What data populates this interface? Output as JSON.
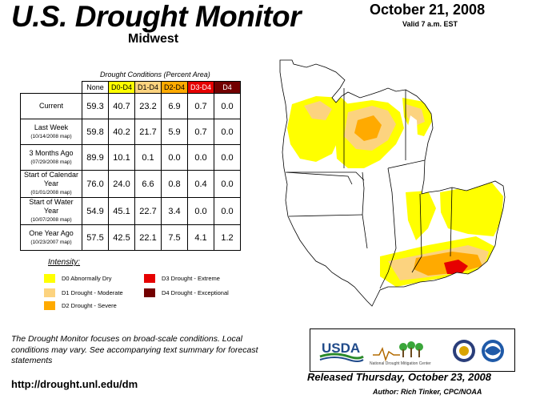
{
  "header": {
    "title": "U.S. Drought Monitor",
    "region": "Midwest",
    "date": "October 21, 2008",
    "valid": "Valid 7 a.m. EST"
  },
  "table": {
    "caption": "Drought Conditions (Percent Area)",
    "columns": [
      "None",
      "D0-D4",
      "D1-D4",
      "D2-D4",
      "D3-D4",
      "D4"
    ],
    "column_colors": [
      "#ffffff",
      "#ffff00",
      "#fcd37f",
      "#ffaa00",
      "#e60000",
      "#730000"
    ],
    "column_text_colors": [
      "#000000",
      "#000000",
      "#000000",
      "#000000",
      "#ffffff",
      "#ffffff"
    ],
    "rows": [
      {
        "label": "Current",
        "sub": "",
        "values": [
          "59.3",
          "40.7",
          "23.2",
          "6.9",
          "0.7",
          "0.0"
        ]
      },
      {
        "label": "Last Week",
        "sub": "(10/14/2008 map)",
        "values": [
          "59.8",
          "40.2",
          "21.7",
          "5.9",
          "0.7",
          "0.0"
        ]
      },
      {
        "label": "3 Months Ago",
        "sub": "(07/29/2008 map)",
        "values": [
          "89.9",
          "10.1",
          "0.1",
          "0.0",
          "0.0",
          "0.0"
        ]
      },
      {
        "label": "Start of Calendar Year",
        "sub": "(01/01/2008 map)",
        "values": [
          "76.0",
          "24.0",
          "6.6",
          "0.8",
          "0.4",
          "0.0"
        ]
      },
      {
        "label": "Start of Water Year",
        "sub": "(10/07/2008 map)",
        "values": [
          "54.9",
          "45.1",
          "22.7",
          "3.4",
          "0.0",
          "0.0"
        ]
      },
      {
        "label": "One Year Ago",
        "sub": "(10/23/2007 map)",
        "values": [
          "57.5",
          "42.5",
          "22.1",
          "7.5",
          "4.1",
          "1.2"
        ]
      }
    ]
  },
  "legend": {
    "title": "Intensity:",
    "items": [
      {
        "label": "D0 Abnormally Dry",
        "color": "#ffff00"
      },
      {
        "label": "D1 Drought - Moderate",
        "color": "#fcd37f"
      },
      {
        "label": "D2 Drought - Severe",
        "color": "#ffaa00"
      },
      {
        "label": "D3 Drought - Extreme",
        "color": "#e60000"
      },
      {
        "label": "D4 Drought - Exceptional",
        "color": "#730000"
      }
    ]
  },
  "footer": {
    "note": "The Drought Monitor focuses on broad-scale conditions. Local conditions may vary. See accompanying text summary for forecast statements",
    "url": "http://drought.unl.edu/dm",
    "released": "Released Thursday, October 23, 2008",
    "author": "Author: Rich Tinker, CPC/NOAA"
  },
  "logos": {
    "usda": "USDA",
    "ndmc": "National Drought Mitigation Center"
  }
}
